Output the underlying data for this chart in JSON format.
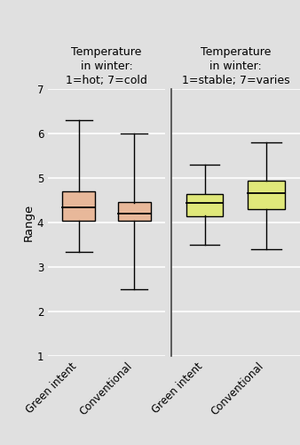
{
  "title_left": "Temperature\nin winter:\n1=hot; 7=cold",
  "title_right": "Temperature\nin winter:\n1=stable; 7=varies",
  "ylabel": "Range",
  "ylim": [
    1,
    7
  ],
  "yticks": [
    1,
    2,
    3,
    4,
    5,
    6,
    7
  ],
  "categories_left": [
    "Green intent",
    "Conventional"
  ],
  "categories_right": [
    "Green intent",
    "Conventional"
  ],
  "boxes": {
    "left": [
      {
        "whislo": 3.35,
        "q1": 4.05,
        "med": 4.35,
        "q3": 4.7,
        "whishi": 6.3
      },
      {
        "whislo": 2.5,
        "q1": 4.05,
        "med": 4.2,
        "q3": 4.45,
        "whishi": 6.0
      }
    ],
    "right": [
      {
        "whislo": 3.5,
        "q1": 4.15,
        "med": 4.45,
        "q3": 4.65,
        "whishi": 5.3
      },
      {
        "whislo": 3.4,
        "q1": 4.3,
        "med": 4.65,
        "q3": 4.95,
        "whishi": 5.8
      }
    ]
  },
  "color_left": "#e8b89a",
  "color_right": "#e0e87a",
  "background_color": "#e0e0e0",
  "plot_bg_color": "#e0e0e0",
  "grid_color": "#ffffff",
  "label_fontsize": 8.5,
  "title_fontsize": 9.0,
  "box_width": 0.6,
  "cap_ratio": 0.4
}
